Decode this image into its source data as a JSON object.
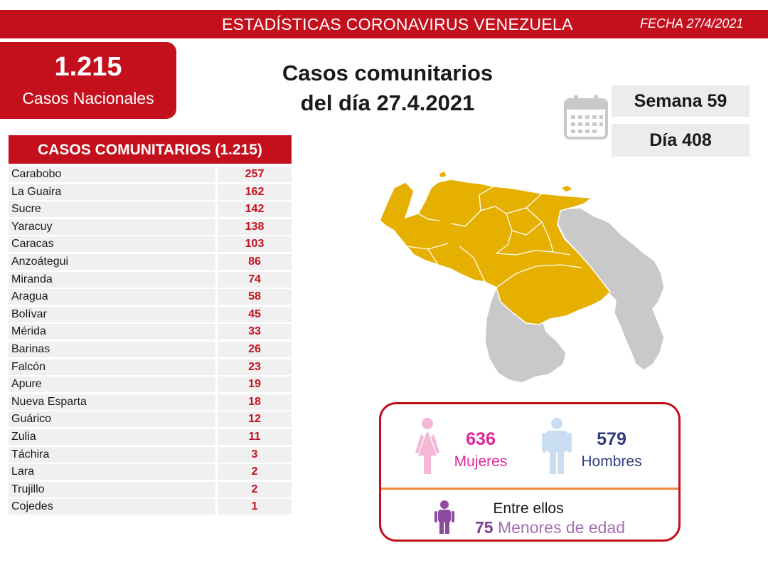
{
  "header": {
    "title": "ESTADÍSTICAS CORONAVIRUS VENEZUELA",
    "date": "FECHA 27/4/2021"
  },
  "national": {
    "total": "1.215",
    "label": "Casos Nacionales"
  },
  "headline": {
    "line1": "Casos comunitarios",
    "line2": "del día 27.4.2021"
  },
  "period": {
    "week": "Semana 59",
    "day": "Día 408"
  },
  "community_table": {
    "title": "CASOS COMUNITARIOS (1.215)",
    "rows": [
      {
        "state": "Carabobo",
        "cases": "257"
      },
      {
        "state": "La Guaira",
        "cases": "162"
      },
      {
        "state": "Sucre",
        "cases": "142"
      },
      {
        "state": "Yaracuy",
        "cases": "138"
      },
      {
        "state": "Caracas",
        "cases": "103"
      },
      {
        "state": "Anzoátegui",
        "cases": "86"
      },
      {
        "state": "Miranda",
        "cases": "74"
      },
      {
        "state": "Aragua",
        "cases": "58"
      },
      {
        "state": "Bolívar",
        "cases": "45"
      },
      {
        "state": "Mérida",
        "cases": "33"
      },
      {
        "state": "Barinas",
        "cases": "26"
      },
      {
        "state": "Falcón",
        "cases": "23"
      },
      {
        "state": "Apure",
        "cases": "19"
      },
      {
        "state": "Nueva Esparta",
        "cases": "18"
      },
      {
        "state": "Guárico",
        "cases": "12"
      },
      {
        "state": "Zulia",
        "cases": "11"
      },
      {
        "state": "Táchira",
        "cases": "3"
      },
      {
        "state": "Lara",
        "cases": "2"
      },
      {
        "state": "Trujillo",
        "cases": "2"
      },
      {
        "state": "Cojedes",
        "cases": "1"
      }
    ]
  },
  "gender": {
    "women_count": "636",
    "women_label": "Mujeres",
    "men_count": "579",
    "men_label": "Hombres",
    "among_label": "Entre ellos",
    "minors_count": "75",
    "minors_label": "Menores de edad"
  },
  "icons": {
    "calendar": "calendar-icon",
    "female": "female-person-icon",
    "male": "male-person-icon",
    "child": "child-person-icon"
  },
  "colors": {
    "brand_red": "#c4101d",
    "map_with_cases": "#e6b000",
    "map_no_cases": "#c9c9c9",
    "women": "#e0279a",
    "men": "#2f3d7c",
    "minors": "#a86fb4",
    "divider": "#f08a3c"
  }
}
